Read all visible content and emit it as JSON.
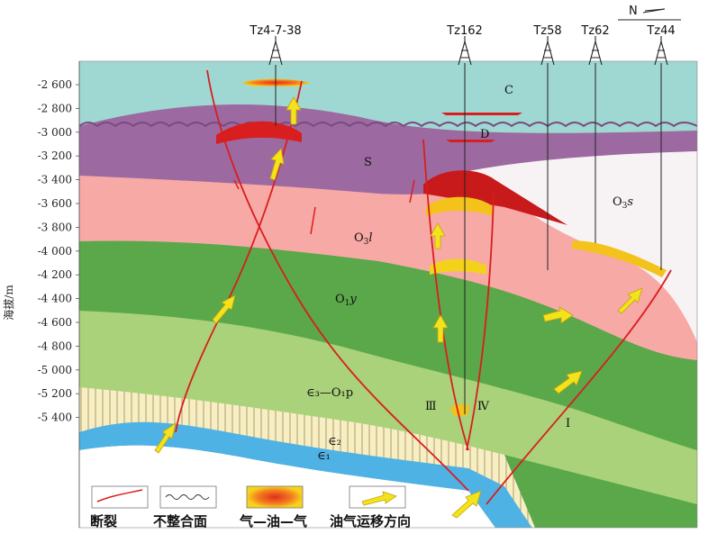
{
  "axis": {
    "label": "海拔/m",
    "ticks": [
      "-2 600",
      "-2 800",
      "-3 000",
      "-3 200",
      "-3 400",
      "-3 600",
      "-3 800",
      "-4 000",
      "-4 200",
      "-4 400",
      "-4 600",
      "-4 800",
      "-5 000",
      "-5 200",
      "-5 400"
    ]
  },
  "compass": {
    "label": "N"
  },
  "wells": [
    {
      "name": "Tz4-7-38"
    },
    {
      "name": "Tz162"
    },
    {
      "name": "Tz58"
    },
    {
      "name": "Tz62"
    },
    {
      "name": "Tz44"
    }
  ],
  "layers": {
    "C": "C",
    "D": "D",
    "S": "S",
    "O3s_main": "O",
    "O3s_sub": "3",
    "O3s_tail": "s",
    "O3l_main": "O",
    "O3l_sub": "3",
    "O3l_tail": "l",
    "O1y_main": "O",
    "O1y_sub": "1",
    "O1y_tail": "y",
    "cambrian_upper": "∈₃—O₁p",
    "cambrian_mid": "∈₂",
    "cambrian_low": "∈₁"
  },
  "blocks": [
    "Ⅲ",
    "Ⅳ",
    "Ⅰ"
  ],
  "legend": [
    {
      "label": "断裂"
    },
    {
      "label": "不整合面"
    },
    {
      "label": "气—油—气"
    },
    {
      "label": "油气运移方向"
    }
  ],
  "colors": {
    "sea_C": "#9fd8d2",
    "silurian": "#9c6aa0",
    "o3_pink": "#f7a9a6",
    "o1_green": "#5aa84a",
    "light_green": "#a9d27a",
    "cambrian_cream": "#f6efc4",
    "blue": "#4fb2e4",
    "fault": "#d81e1e",
    "oil": "#f3c21b"
  }
}
